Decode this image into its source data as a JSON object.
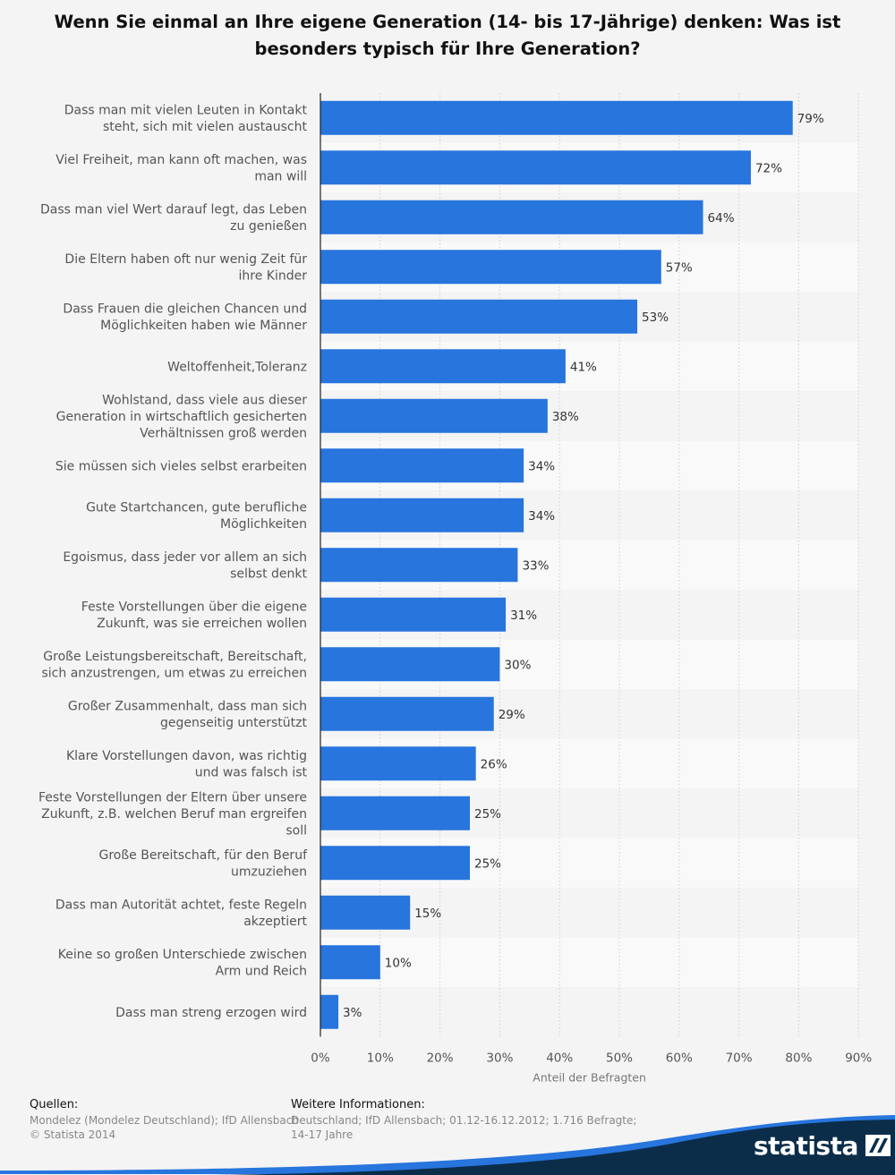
{
  "title": {
    "line1": "Wenn Sie einmal an Ihre eigene Generation (14- bis 17-Jährige) denken: Was ist",
    "line2": "besonders typisch für Ihre Generation?"
  },
  "chart_data": {
    "type": "bar",
    "orientation": "horizontal",
    "categories": [
      [
        "Dass man mit vielen Leuten in Kontakt",
        "steht, sich mit vielen austauscht"
      ],
      [
        "Viel Freiheit, man kann oft machen, was",
        "man will"
      ],
      [
        "Dass man viel Wert darauf legt, das Leben",
        "zu genießen"
      ],
      [
        "Die Eltern haben oft nur wenig Zeit für",
        "ihre Kinder"
      ],
      [
        "Dass Frauen die gleichen Chancen und",
        "Möglichkeiten haben wie Männer"
      ],
      [
        "Weltoffenheit,Toleranz"
      ],
      [
        "Wohlstand, dass viele aus dieser",
        "Generation in wirtschaftlich gesicherten",
        "Verhältnissen groß werden"
      ],
      [
        "Sie müssen sich vieles selbst erarbeiten"
      ],
      [
        "Gute Startchancen, gute berufliche",
        "Möglichkeiten"
      ],
      [
        "Egoismus, dass jeder vor allem an sich",
        "selbst denkt"
      ],
      [
        "Feste Vorstellungen über die eigene",
        "Zukunft, was sie erreichen wollen"
      ],
      [
        "Große Leistungsbereitschaft, Bereitschaft,",
        "sich anzustrengen, um etwas zu erreichen"
      ],
      [
        "Großer Zusammenhalt, dass man sich",
        "gegenseitig unterstützt"
      ],
      [
        "Klare Vorstellungen davon, was richtig",
        "und was falsch ist"
      ],
      [
        "Feste Vorstellungen der Eltern über unsere",
        "Zukunft, z.B. welchen Beruf man ergreifen",
        "soll"
      ],
      [
        "Große Bereitschaft, für den Beruf",
        "umzuziehen"
      ],
      [
        "Dass man Autorität achtet, feste Regeln",
        "akzeptiert"
      ],
      [
        "Keine so großen Unterschiede zwischen",
        "Arm und Reich"
      ],
      [
        "Dass man streng erzogen wird"
      ]
    ],
    "values": [
      79,
      72,
      64,
      57,
      53,
      41,
      38,
      34,
      34,
      33,
      31,
      30,
      29,
      26,
      25,
      25,
      15,
      10,
      3
    ],
    "value_labels": [
      "79%",
      "72%",
      "64%",
      "57%",
      "53%",
      "41%",
      "38%",
      "34%",
      "34%",
      "33%",
      "31%",
      "30%",
      "29%",
      "26%",
      "25%",
      "25%",
      "15%",
      "10%",
      "3%"
    ],
    "xlim": [
      0,
      90
    ],
    "xticks": [
      0,
      10,
      20,
      30,
      40,
      50,
      60,
      70,
      80,
      90
    ],
    "xtick_labels": [
      "0%",
      "10%",
      "20%",
      "30%",
      "40%",
      "50%",
      "60%",
      "70%",
      "80%",
      "90%"
    ],
    "xlabel": "Anteil der Befragten",
    "ylabel": "",
    "grid": true,
    "bar_color": "#2775dd"
  },
  "footer": {
    "sources_heading": "Quellen:",
    "sources_line1": "Mondelez (Mondelez Deutschland); IfD Allensbach",
    "sources_line2": "© Statista 2014",
    "info_heading": "Weitere Informationen:",
    "info_line1": "Deutschland; IfD Allensbach; 01.12-16.12.2012; 1.716 Befragte;",
    "info_line2": "14-17 Jahre"
  },
  "brand": {
    "name": "statista",
    "color": "#0b2d4a",
    "accent": "#2775dd"
  }
}
